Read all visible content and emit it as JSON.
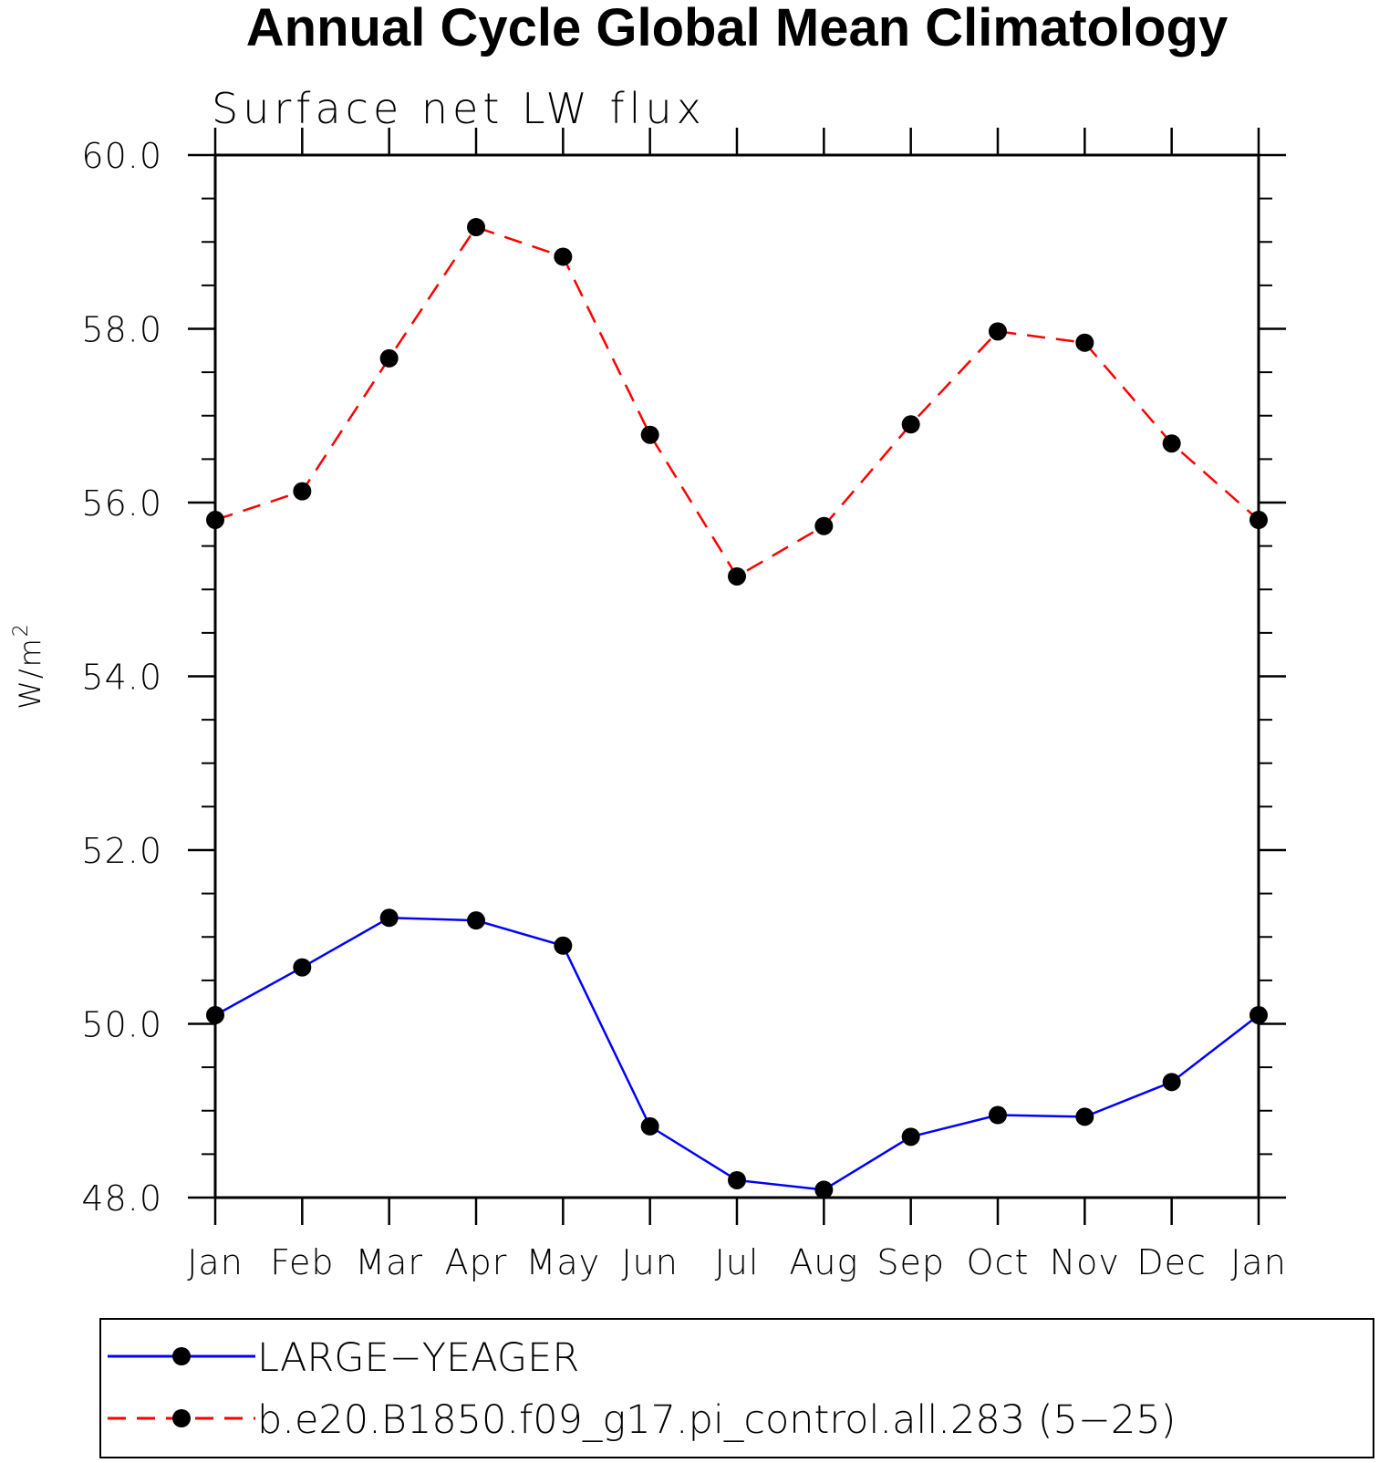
{
  "chart_data": {
    "type": "line",
    "title": "Annual Cycle Global Mean Climatology",
    "subtitle": "Surface net LW flux",
    "ylabel_main": "W/m",
    "ylabel_sup": "2",
    "xlabel": "",
    "categories": [
      "Jan",
      "Feb",
      "Mar",
      "Apr",
      "May",
      "Jun",
      "Jul",
      "Aug",
      "Sep",
      "Oct",
      "Nov",
      "Dec",
      "Jan"
    ],
    "ylim": [
      48.0,
      60.0
    ],
    "yticks": [
      "48.0",
      "50.0",
      "52.0",
      "54.0",
      "56.0",
      "58.0",
      "60.0"
    ],
    "ytick_values": [
      48,
      50,
      52,
      54,
      56,
      58,
      60
    ],
    "y_minor_step": 0.5,
    "grid": false,
    "legend_position": "bottom",
    "series": [
      {
        "name": "LARGE−YEAGER",
        "color": "#0000ff",
        "dash": "solid",
        "values": [
          50.1,
          50.65,
          51.22,
          51.19,
          50.9,
          48.82,
          48.2,
          48.09,
          48.7,
          48.95,
          48.93,
          49.33,
          50.1
        ]
      },
      {
        "name": "b.e20.B1850.f09_g17.pi_control.all.283 (5−25)",
        "color": "#ff0000",
        "dash": "dashed",
        "values": [
          55.8,
          56.13,
          57.66,
          59.17,
          58.83,
          56.78,
          55.15,
          55.73,
          56.9,
          57.97,
          57.84,
          56.68,
          55.8
        ]
      }
    ]
  }
}
